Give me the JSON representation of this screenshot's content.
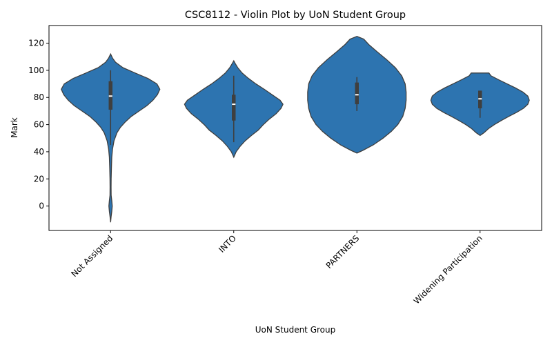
{
  "chart_data": {
    "type": "violin",
    "title": "CSC8112 - Violin Plot by UoN Student Group",
    "xlabel": "UoN Student Group",
    "ylabel": "Mark",
    "ylim": [
      -18,
      133
    ],
    "yticks": [
      0,
      20,
      40,
      60,
      80,
      100,
      120
    ],
    "categories": [
      "Not Assigned",
      "INTO",
      "PARTNERS",
      "Widening Participation"
    ],
    "color": "#2d74b0",
    "edge_color": "#3f3f3f",
    "grid": false,
    "legend": "none",
    "series": [
      {
        "category": "Not Assigned",
        "range": [
          -12,
          112
        ],
        "box": {
          "whisker_low": 45,
          "q1": 71,
          "median": 81,
          "q3": 92,
          "whisker_high": 100
        },
        "density": [
          [
            -12,
            0.0
          ],
          [
            -8,
            0.01
          ],
          [
            -4,
            0.025
          ],
          [
            0,
            0.035
          ],
          [
            4,
            0.025
          ],
          [
            8,
            0.012
          ],
          [
            14,
            0.01
          ],
          [
            20,
            0.012
          ],
          [
            28,
            0.018
          ],
          [
            36,
            0.025
          ],
          [
            42,
            0.04
          ],
          [
            48,
            0.07
          ],
          [
            54,
            0.13
          ],
          [
            58,
            0.2
          ],
          [
            62,
            0.3
          ],
          [
            66,
            0.42
          ],
          [
            70,
            0.58
          ],
          [
            74,
            0.74
          ],
          [
            78,
            0.86
          ],
          [
            82,
            0.95
          ],
          [
            86,
            1.0
          ],
          [
            90,
            0.94
          ],
          [
            94,
            0.76
          ],
          [
            98,
            0.5
          ],
          [
            102,
            0.25
          ],
          [
            106,
            0.1
          ],
          [
            109,
            0.04
          ],
          [
            112,
            0.0
          ]
        ]
      },
      {
        "category": "INTO",
        "range": [
          36,
          107
        ],
        "box": {
          "whisker_low": 47,
          "q1": 63,
          "median": 75,
          "q3": 82,
          "whisker_high": 96
        },
        "density": [
          [
            36,
            0.0
          ],
          [
            40,
            0.05
          ],
          [
            44,
            0.13
          ],
          [
            48,
            0.23
          ],
          [
            52,
            0.36
          ],
          [
            56,
            0.5
          ],
          [
            60,
            0.6
          ],
          [
            64,
            0.72
          ],
          [
            68,
            0.86
          ],
          [
            72,
            0.96
          ],
          [
            75,
            1.0
          ],
          [
            78,
            0.94
          ],
          [
            82,
            0.78
          ],
          [
            86,
            0.62
          ],
          [
            90,
            0.45
          ],
          [
            94,
            0.3
          ],
          [
            98,
            0.17
          ],
          [
            102,
            0.08
          ],
          [
            105,
            0.03
          ],
          [
            107,
            0.0
          ]
        ]
      },
      {
        "category": "PARTNERS",
        "range": [
          39,
          125
        ],
        "box": {
          "whisker_low": 70,
          "q1": 75,
          "median": 82,
          "q3": 91,
          "whisker_high": 95
        },
        "density": [
          [
            39,
            0.0
          ],
          [
            41,
            0.12
          ],
          [
            45,
            0.33
          ],
          [
            50,
            0.53
          ],
          [
            55,
            0.7
          ],
          [
            60,
            0.83
          ],
          [
            66,
            0.93
          ],
          [
            72,
            0.98
          ],
          [
            78,
            1.0
          ],
          [
            84,
            1.0
          ],
          [
            90,
            0.98
          ],
          [
            96,
            0.91
          ],
          [
            102,
            0.78
          ],
          [
            108,
            0.6
          ],
          [
            114,
            0.4
          ],
          [
            119,
            0.24
          ],
          [
            123,
            0.14
          ],
          [
            125,
            0.0
          ]
        ]
      },
      {
        "category": "Widening Participation",
        "range": [
          52,
          98
        ],
        "box": {
          "whisker_low": 65,
          "q1": 72,
          "median": 79,
          "q3": 85,
          "whisker_high": 85
        },
        "density": [
          [
            52,
            0.0
          ],
          [
            54,
            0.08
          ],
          [
            57,
            0.17
          ],
          [
            60,
            0.29
          ],
          [
            63,
            0.43
          ],
          [
            66,
            0.58
          ],
          [
            69,
            0.74
          ],
          [
            72,
            0.88
          ],
          [
            75,
            0.97
          ],
          [
            78,
            1.0
          ],
          [
            81,
            0.97
          ],
          [
            84,
            0.87
          ],
          [
            87,
            0.72
          ],
          [
            90,
            0.55
          ],
          [
            93,
            0.38
          ],
          [
            96,
            0.22
          ],
          [
            98,
            0.18
          ]
        ]
      }
    ]
  }
}
